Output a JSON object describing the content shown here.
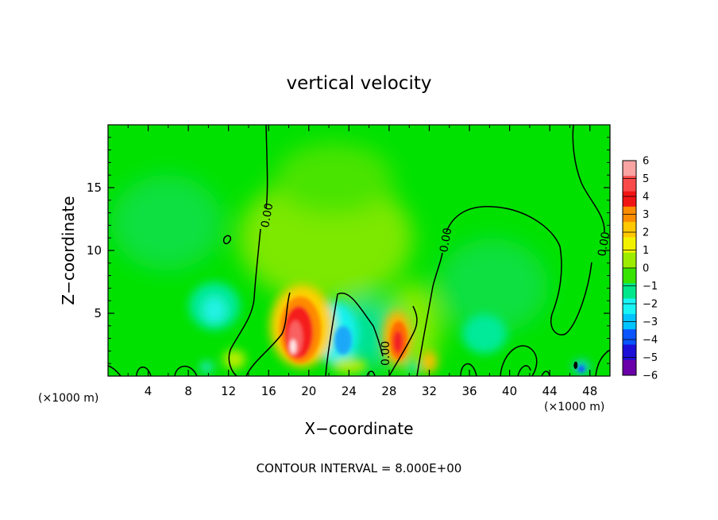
{
  "chart_data": {
    "type": "heatmap",
    "title": "vertical velocity",
    "xlabel": "X−coordinate",
    "ylabel": "Z−coordinate",
    "x_units_left": "(×1000 m)",
    "x_units_right": "(×1000 m)",
    "xlim": [
      0,
      50
    ],
    "ylim": [
      0,
      20
    ],
    "x_ticks": [
      4,
      8,
      12,
      16,
      20,
      24,
      28,
      32,
      36,
      40,
      44,
      48
    ],
    "y_ticks": [
      5,
      10,
      15
    ],
    "colorbar": {
      "levels": [
        6,
        5,
        4,
        3,
        2,
        1,
        0,
        -1,
        -2,
        -3,
        -4,
        -5,
        -6
      ],
      "labels": [
        "6",
        "5",
        "4",
        "3",
        "2",
        "1",
        "0",
        "−1",
        "−2",
        "−3",
        "−4",
        "−5",
        "−6"
      ],
      "colors": [
        "#f9a3a3",
        "#f84a4a",
        "#f11414",
        "#fb8c00",
        "#ffc800",
        "#f2f200",
        "#9cec00",
        "#37e400",
        "#00e68a",
        "#19f5f5",
        "#00c4ff",
        "#0a55ff",
        "#1c10d8",
        "#6a00a8"
      ]
    },
    "contour_level": "0.00",
    "contour_interval_text": "CONTOUR INTERVAL =  8.000E+00",
    "features": [
      {
        "kind": "updraft",
        "x": 18.8,
        "z": 3.5,
        "peak": 6
      },
      {
        "kind": "updraft",
        "x": 29.2,
        "z": 2.5,
        "peak": 4
      },
      {
        "kind": "updraft",
        "x": 32.3,
        "z": 1.0,
        "peak": 2.5
      },
      {
        "kind": "downdraft",
        "x": 23.5,
        "z": 2.8,
        "peak": -3
      },
      {
        "kind": "downdraft",
        "x": 10.5,
        "z": 5.5,
        "peak": -2
      },
      {
        "kind": "downdraft",
        "x": 47.0,
        "z": 0.5,
        "peak": -3
      }
    ]
  }
}
